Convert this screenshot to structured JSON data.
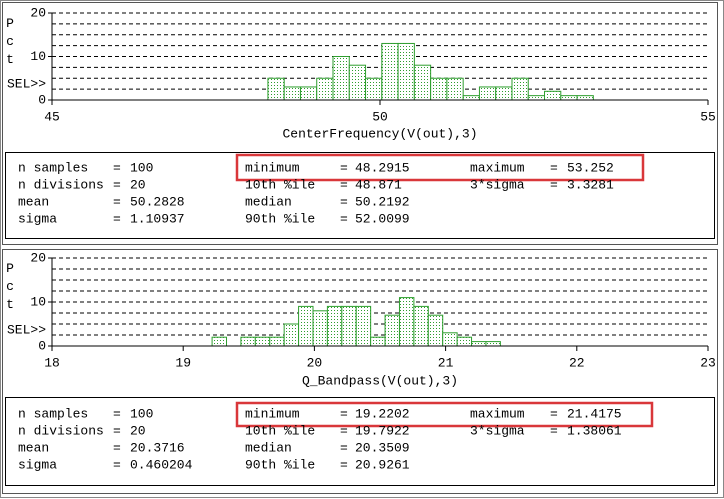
{
  "chart_data": [
    {
      "type": "histogram",
      "ylabel": "Pct",
      "marker_label": "SEL>>",
      "xlabel": "CenterFrequency(V(out),3)",
      "bins": [
        48.2915,
        48.5395,
        48.7876,
        49.0356,
        49.2836,
        49.5316,
        49.7797,
        50.0277,
        50.2757,
        50.5237,
        50.7718,
        51.0198,
        51.2678,
        51.5158,
        51.7639,
        52.0119,
        52.2599,
        52.5079,
        52.756,
        53.004,
        53.252
      ],
      "values": [
        5,
        3,
        3,
        5,
        10,
        8,
        5,
        13,
        13,
        8,
        5,
        5,
        1,
        3,
        3,
        5,
        1,
        2,
        1,
        1
      ],
      "color": "#2e9e2e",
      "xlim": [
        45,
        55
      ],
      "xticks": [
        45,
        50,
        55
      ],
      "ylim": [
        0,
        20
      ],
      "yticks": [
        0,
        10,
        20
      ],
      "ygrid": [
        2.5,
        5,
        7.5,
        10,
        12.5,
        15,
        17.5,
        20
      ],
      "stats": [
        [
          "n samples",
          "100",
          "minimum",
          "48.2915",
          "maximum",
          "53.252"
        ],
        [
          "n divisions",
          "20",
          "10th %ile",
          "48.871",
          "3*sigma",
          "3.3281"
        ],
        [
          "mean",
          "50.2828",
          "median",
          "50.2192"
        ],
        [
          "sigma",
          "1.10937",
          "90th %ile",
          "52.0099"
        ]
      ]
    },
    {
      "type": "histogram",
      "ylabel": "Pct",
      "marker_label": "SEL>>",
      "xlabel": "Q_Bandpass(V(out),3)",
      "bins": [
        19.2202,
        19.3301,
        19.4399,
        19.5498,
        19.6597,
        19.7695,
        19.8794,
        19.9893,
        20.0991,
        20.209,
        20.3189,
        20.4287,
        20.5386,
        20.6484,
        20.7583,
        20.8682,
        20.978,
        21.0879,
        21.1978,
        21.3076,
        21.4175
      ],
      "values": [
        2,
        0,
        2,
        2,
        2,
        5,
        9,
        8,
        9,
        9,
        9,
        2,
        7,
        11,
        9,
        7,
        3,
        2,
        1,
        1
      ],
      "color": "#2e9e2e",
      "xlim": [
        18,
        23
      ],
      "xticks": [
        18,
        19,
        20,
        21,
        22,
        23
      ],
      "ylim": [
        0,
        20
      ],
      "yticks": [
        0,
        10,
        20
      ],
      "ygrid": [
        2.5,
        5,
        7.5,
        10,
        12.5,
        15,
        17.5,
        20
      ],
      "stats": [
        [
          "n samples",
          "100",
          "minimum",
          "19.2202",
          "maximum",
          "21.4175"
        ],
        [
          "n divisions",
          "20",
          "10th %ile",
          "19.7922",
          "3*sigma",
          "1.38061"
        ],
        [
          "mean",
          "20.3716",
          "median",
          "20.3509"
        ],
        [
          "sigma",
          "0.460204",
          "90th %ile",
          "20.9261"
        ]
      ]
    }
  ]
}
